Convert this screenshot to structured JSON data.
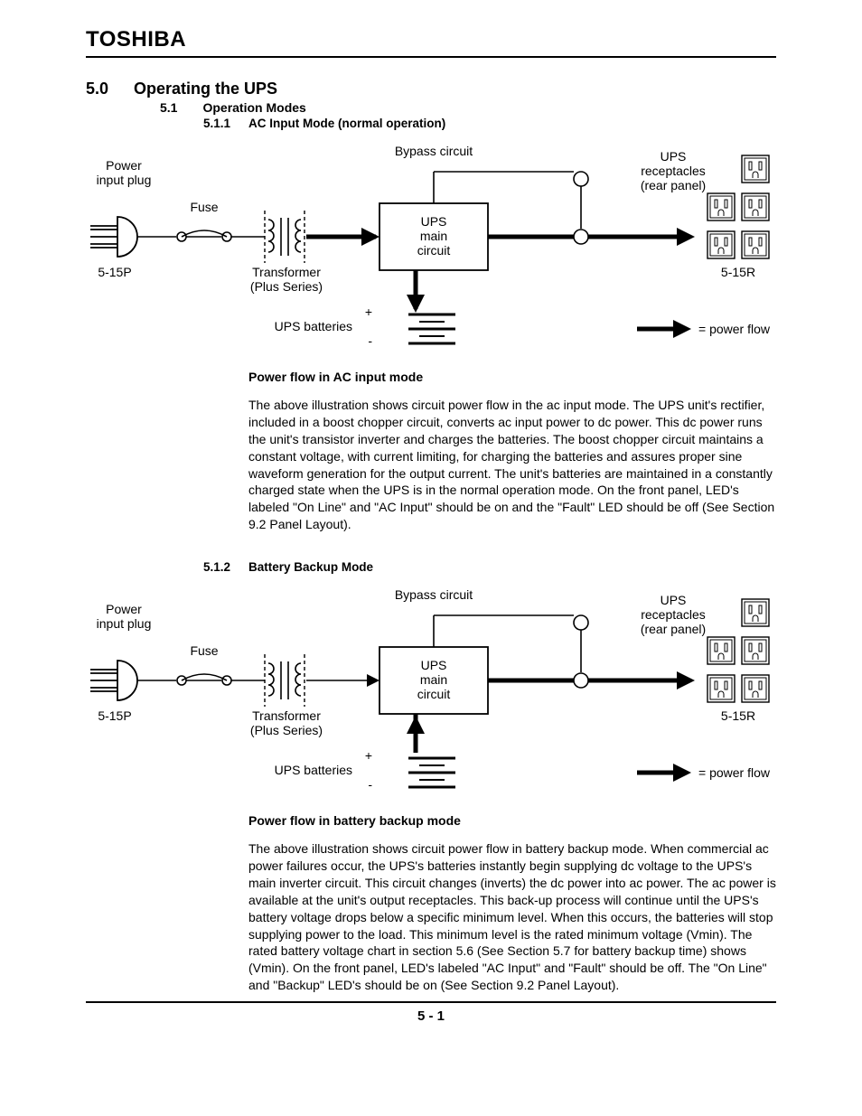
{
  "brand": "TOSHIBA",
  "page_footer": "5 - 1",
  "headings": {
    "h1_num": "5.0",
    "h1_txt": "Operating the UPS",
    "h2_num": "5.1",
    "h2_txt": "Operation Modes",
    "h3a_num": "5.1.1",
    "h3a_txt": "AC Input Mode (normal operation)",
    "h3b_num": "5.1.2",
    "h3b_txt": "Battery Backup Mode"
  },
  "captions": {
    "ac": "Power flow in AC input mode",
    "batt": "Power flow in battery backup mode"
  },
  "paragraphs": {
    "ac": "The above illustration shows circuit power flow in the ac input mode.  The UPS unit's rectifier, included in a boost chopper circuit, converts ac input power to dc power. This dc power runs the unit's transistor inverter and charges the batteries. The boost chopper circuit maintains a constant voltage, with current limiting, for charging the batteries and assures proper sine waveform generation for the output current. The unit's batteries are maintained in a constantly charged state when the UPS is in the normal operation mode.  On the front panel, LED's labeled \"On Line\" and \"AC Input\" should be on and the \"Fault\" LED should be off (See Section 9.2 Panel Layout).",
    "batt": "The above illustration shows circuit power flow in battery backup mode.  When commercial ac power failures occur, the UPS's batteries instantly begin supplying dc voltage to the UPS's main inverter circuit. This circuit changes (inverts) the dc power into ac power. The ac power is available at the unit's output receptacles. This back-up process will continue until the UPS's battery voltage drops below a specific minimum level. When this occurs, the batteries will stop supplying power to the load. This minimum level is the rated minimum voltage (Vmin). The rated battery voltage chart in section 5.6 (See Section 5.7 for battery backup time) shows (Vmin). On the front panel, LED's labeled \"AC Input\" and \"Fault\" should be off.  The \"On Line\" and \"Backup\" LED's should be on (See Section 9.2 Panel Layout)."
  },
  "diagram_labels": {
    "bypass": "Bypass circuit",
    "power_input_plug_l1": "Power",
    "power_input_plug_l2": "input plug",
    "fuse": "Fuse",
    "plug_type": "5-15P",
    "transformer_l1": "Transformer",
    "transformer_l2": "(Plus Series)",
    "ups_main_l1": "UPS",
    "ups_main_l2": "main",
    "ups_main_l3": "circuit",
    "ups_batteries": "UPS batteries",
    "ups_recept_l1": "UPS",
    "ups_recept_l2": "receptacles",
    "ups_recept_l3": "(rear panel)",
    "recept_type": "5-15R",
    "power_flow_legend": "= power flow",
    "plus": "+",
    "minus": "-"
  },
  "diagram_style": {
    "mode_ac_thick_input": true,
    "mode_batt_thick_input": false,
    "stroke": "#000000",
    "thick": 5,
    "thin": 1.6,
    "font_label": 14,
    "font_small": 14
  }
}
